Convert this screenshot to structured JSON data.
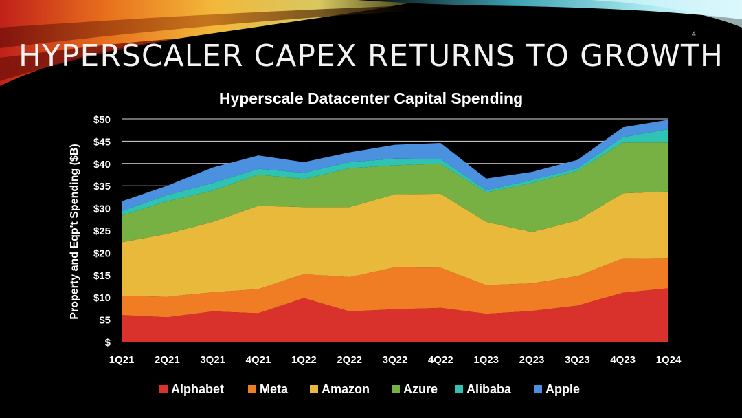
{
  "slide": {
    "title": "HYPERSCALER CAPEX RETURNS TO GROWTH",
    "page_number": "4"
  },
  "chart_data": {
    "type": "area",
    "stacked": true,
    "title": "Hyperscale Datacenter Capital Spending",
    "xlabel": "",
    "ylabel": "Property and Eqp't Spending ($B)",
    "categories": [
      "1Q21",
      "2Q21",
      "3Q21",
      "4Q21",
      "1Q22",
      "2Q22",
      "3Q22",
      "4Q22",
      "1Q23",
      "2Q23",
      "3Q23",
      "4Q23",
      "1Q24"
    ],
    "y_ticks": [
      "$",
      "$5",
      "$10",
      "$15",
      "$20",
      "$25",
      "$30",
      "$35",
      "$40",
      "$45",
      "$50"
    ],
    "ylim": [
      0,
      50
    ],
    "grid": true,
    "legend_position": "bottom",
    "series": [
      {
        "name": "Alphabet",
        "color": "#d9312b",
        "values": [
          6.0,
          5.5,
          6.8,
          6.4,
          9.8,
          6.8,
          7.3,
          7.6,
          6.3,
          6.9,
          8.1,
          11.0,
          12.0
        ]
      },
      {
        "name": "Meta",
        "color": "#f07c23",
        "values": [
          4.3,
          4.6,
          4.3,
          5.4,
          5.4,
          7.7,
          9.4,
          9.0,
          6.4,
          6.2,
          6.6,
          7.7,
          6.8
        ]
      },
      {
        "name": "Amazon",
        "color": "#e9b93c",
        "values": [
          12.0,
          14.1,
          15.8,
          18.7,
          15.0,
          15.7,
          16.4,
          16.6,
          14.2,
          11.5,
          12.5,
          14.6,
          14.9
        ]
      },
      {
        "name": "Azure",
        "color": "#77b043",
        "values": [
          6.0,
          7.3,
          7.0,
          7.0,
          6.3,
          8.7,
          6.5,
          6.7,
          6.6,
          11.0,
          11.1,
          11.4,
          11.0
        ]
      },
      {
        "name": "Alibaba",
        "color": "#2ec3b3",
        "values": [
          1.0,
          1.4,
          1.7,
          1.3,
          1.4,
          1.4,
          1.5,
          1.1,
          0.5,
          0.7,
          0.6,
          1.2,
          3.0
        ]
      },
      {
        "name": "Apple",
        "color": "#4b91e0",
        "values": [
          2.2,
          2.1,
          3.5,
          3.0,
          2.4,
          2.2,
          3.1,
          3.6,
          2.6,
          1.8,
          1.9,
          2.2,
          2.1
        ]
      }
    ]
  }
}
